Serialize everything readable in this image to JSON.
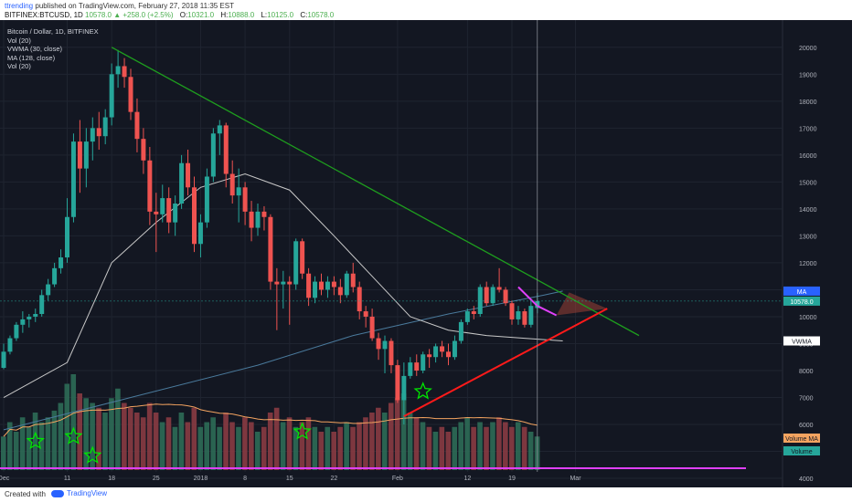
{
  "header": {
    "username": "ttrending",
    "published_text": "published on TradingView.com, February 27, 2018 11:35 EST",
    "symbol": "BITFINEX:BTCUSD, 1D",
    "last": "10578.0",
    "change": "▲ +258.0 (+2.5%)",
    "o_label": "O:",
    "o_value": "10321.0",
    "h_label": "H:",
    "h_value": "10888.0",
    "l_label": "L:",
    "l_value": "10125.0",
    "c_label": "C:",
    "c_value": "10578.0"
  },
  "legend": [
    "Bitcoin / Dollar, 1D, BITFINEX",
    "Vol (20)",
    "VWMA (30, close)",
    "MA (128, close)",
    "Vol (20)"
  ],
  "footer": {
    "created": "Created with",
    "brand": "TradingView"
  },
  "colors": {
    "bg": "#131722",
    "up": "#26a69a",
    "down": "#ef5350",
    "trend": "#1e9e1e",
    "support": "#ff1a1a",
    "magenta": "#e040fb",
    "vwma": "#c8c8c8",
    "ma": "#4a7a9c",
    "volma": "#f4a460",
    "star": "#00e600"
  },
  "chart_data": {
    "type": "candlestick",
    "y_ticks": [
      4000,
      5000,
      6000,
      7000,
      8000,
      9000,
      10000,
      11000,
      12000,
      13000,
      14000,
      15000,
      16000,
      17000,
      18000,
      19000,
      20000
    ],
    "x_ticks": [
      "Dec",
      "11",
      "18",
      "25",
      "2018",
      "8",
      "15",
      "22",
      "Feb",
      "12",
      "19",
      "Mar"
    ],
    "x_tick_days": [
      0,
      10,
      17,
      24,
      31,
      38,
      45,
      52,
      62,
      73,
      80,
      90
    ],
    "price_labels": [
      {
        "text": "MA",
        "value": 10950,
        "color": "#2962ff"
      },
      {
        "text": "10578.0",
        "value": 10578,
        "color": "#26a69a"
      },
      {
        "text": "VWMA",
        "value": 9100,
        "color": "#ffffff"
      }
    ],
    "volume_labels": [
      {
        "text": "Volume MA",
        "color": "#f4a460"
      },
      {
        "text": "Volume",
        "color": "#26a69a"
      }
    ],
    "ylim": [
      3900,
      20400
    ],
    "start_date": "2017-11-26",
    "candles": [
      {
        "o": 8100,
        "h": 9000,
        "l": 8050,
        "c": 8700
      },
      {
        "o": 8700,
        "h": 9300,
        "l": 8600,
        "c": 9200
      },
      {
        "o": 9200,
        "h": 9800,
        "l": 9100,
        "c": 9700
      },
      {
        "o": 9700,
        "h": 10200,
        "l": 9400,
        "c": 9900
      },
      {
        "o": 9900,
        "h": 10100,
        "l": 9600,
        "c": 10000
      },
      {
        "o": 10000,
        "h": 10300,
        "l": 9800,
        "c": 10100
      },
      {
        "o": 10100,
        "h": 11000,
        "l": 10000,
        "c": 10800
      },
      {
        "o": 10800,
        "h": 11400,
        "l": 10600,
        "c": 11200
      },
      {
        "o": 11200,
        "h": 12000,
        "l": 11100,
        "c": 11800
      },
      {
        "o": 11800,
        "h": 12500,
        "l": 11600,
        "c": 12200
      },
      {
        "o": 12200,
        "h": 14400,
        "l": 12000,
        "c": 13700
      },
      {
        "o": 13700,
        "h": 16800,
        "l": 13500,
        "c": 16500
      },
      {
        "o": 16500,
        "h": 17300,
        "l": 14600,
        "c": 15500
      },
      {
        "o": 15500,
        "h": 17000,
        "l": 14800,
        "c": 16500
      },
      {
        "o": 16500,
        "h": 17400,
        "l": 15800,
        "c": 17000
      },
      {
        "o": 17000,
        "h": 17600,
        "l": 16200,
        "c": 16700
      },
      {
        "o": 16700,
        "h": 17700,
        "l": 16400,
        "c": 17400
      },
      {
        "o": 17400,
        "h": 19400,
        "l": 17100,
        "c": 19000
      },
      {
        "o": 19000,
        "h": 19900,
        "l": 18500,
        "c": 19300
      },
      {
        "o": 19300,
        "h": 19600,
        "l": 18500,
        "c": 18900
      },
      {
        "o": 18900,
        "h": 19200,
        "l": 17300,
        "c": 17600
      },
      {
        "o": 17600,
        "h": 18100,
        "l": 16100,
        "c": 16600
      },
      {
        "o": 16600,
        "h": 17000,
        "l": 15300,
        "c": 15800
      },
      {
        "o": 15800,
        "h": 16300,
        "l": 13400,
        "c": 13900
      },
      {
        "o": 13900,
        "h": 14600,
        "l": 12400,
        "c": 13800
      },
      {
        "o": 13800,
        "h": 14900,
        "l": 13500,
        "c": 14400
      },
      {
        "o": 14400,
        "h": 14800,
        "l": 13100,
        "c": 13500
      },
      {
        "o": 13500,
        "h": 14500,
        "l": 13000,
        "c": 14200
      },
      {
        "o": 14200,
        "h": 16000,
        "l": 14000,
        "c": 15700
      },
      {
        "o": 15700,
        "h": 16200,
        "l": 14500,
        "c": 14800
      },
      {
        "o": 14800,
        "h": 15200,
        "l": 12400,
        "c": 12700
      },
      {
        "o": 12700,
        "h": 13800,
        "l": 12200,
        "c": 13500
      },
      {
        "o": 13500,
        "h": 15500,
        "l": 13300,
        "c": 15200
      },
      {
        "o": 15200,
        "h": 17000,
        "l": 15000,
        "c": 16800
      },
      {
        "o": 16800,
        "h": 17300,
        "l": 16000,
        "c": 17100
      },
      {
        "o": 17100,
        "h": 17200,
        "l": 14800,
        "c": 15300
      },
      {
        "o": 15300,
        "h": 15800,
        "l": 14200,
        "c": 14500
      },
      {
        "o": 14500,
        "h": 15500,
        "l": 13500,
        "c": 14800
      },
      {
        "o": 14800,
        "h": 15000,
        "l": 13400,
        "c": 13900
      },
      {
        "o": 13900,
        "h": 14300,
        "l": 12800,
        "c": 13300
      },
      {
        "o": 13300,
        "h": 14200,
        "l": 13000,
        "c": 13900
      },
      {
        "o": 13900,
        "h": 14100,
        "l": 13200,
        "c": 13700
      },
      {
        "o": 13700,
        "h": 13800,
        "l": 11000,
        "c": 11300
      },
      {
        "o": 11300,
        "h": 11800,
        "l": 9500,
        "c": 11200
      },
      {
        "o": 11200,
        "h": 11700,
        "l": 10300,
        "c": 11300
      },
      {
        "o": 11300,
        "h": 11500,
        "l": 9700,
        "c": 11200
      },
      {
        "o": 11200,
        "h": 12900,
        "l": 11000,
        "c": 12800
      },
      {
        "o": 12800,
        "h": 12900,
        "l": 11400,
        "c": 11600
      },
      {
        "o": 11600,
        "h": 11800,
        "l": 10400,
        "c": 10700
      },
      {
        "o": 10700,
        "h": 11500,
        "l": 10500,
        "c": 11300
      },
      {
        "o": 11300,
        "h": 11600,
        "l": 10800,
        "c": 11000
      },
      {
        "o": 11000,
        "h": 11500,
        "l": 10700,
        "c": 11300
      },
      {
        "o": 11300,
        "h": 11500,
        "l": 10800,
        "c": 11100
      },
      {
        "o": 11100,
        "h": 11400,
        "l": 10500,
        "c": 10800
      },
      {
        "o": 10800,
        "h": 11700,
        "l": 10700,
        "c": 11600
      },
      {
        "o": 11600,
        "h": 12000,
        "l": 10900,
        "c": 11100
      },
      {
        "o": 11100,
        "h": 11300,
        "l": 9900,
        "c": 10200
      },
      {
        "o": 10200,
        "h": 10400,
        "l": 9600,
        "c": 10000
      },
      {
        "o": 10000,
        "h": 10300,
        "l": 9100,
        "c": 9200
      },
      {
        "o": 9200,
        "h": 9400,
        "l": 8400,
        "c": 8800
      },
      {
        "o": 8800,
        "h": 9300,
        "l": 7900,
        "c": 9100
      },
      {
        "o": 9100,
        "h": 9200,
        "l": 7900,
        "c": 8200
      },
      {
        "o": 8200,
        "h": 8400,
        "l": 6800,
        "c": 6900
      },
      {
        "o": 6900,
        "h": 8300,
        "l": 6000,
        "c": 7800
      },
      {
        "o": 7800,
        "h": 8500,
        "l": 7700,
        "c": 8300
      },
      {
        "o": 8300,
        "h": 8600,
        "l": 7800,
        "c": 8000
      },
      {
        "o": 8000,
        "h": 8700,
        "l": 7900,
        "c": 8600
      },
      {
        "o": 8600,
        "h": 8800,
        "l": 8100,
        "c": 8500
      },
      {
        "o": 8500,
        "h": 9000,
        "l": 8300,
        "c": 8900
      },
      {
        "o": 8900,
        "h": 9100,
        "l": 8500,
        "c": 8700
      },
      {
        "o": 8700,
        "h": 9000,
        "l": 8200,
        "c": 8500
      },
      {
        "o": 8500,
        "h": 9300,
        "l": 8400,
        "c": 9100
      },
      {
        "o": 9100,
        "h": 9900,
        "l": 9000,
        "c": 9800
      },
      {
        "o": 9800,
        "h": 10300,
        "l": 9700,
        "c": 10200
      },
      {
        "o": 10200,
        "h": 10400,
        "l": 9900,
        "c": 10100
      },
      {
        "o": 10100,
        "h": 11200,
        "l": 10000,
        "c": 11100
      },
      {
        "o": 11100,
        "h": 11300,
        "l": 10400,
        "c": 10500
      },
      {
        "o": 10500,
        "h": 11200,
        "l": 10400,
        "c": 11100
      },
      {
        "o": 11100,
        "h": 11800,
        "l": 10900,
        "c": 11000
      },
      {
        "o": 11000,
        "h": 11100,
        "l": 10400,
        "c": 10500
      },
      {
        "o": 10500,
        "h": 10600,
        "l": 9700,
        "c": 9900
      },
      {
        "o": 9900,
        "h": 10400,
        "l": 9700,
        "c": 10200
      },
      {
        "o": 10200,
        "h": 10300,
        "l": 9600,
        "c": 9700
      },
      {
        "o": 9700,
        "h": 10600,
        "l": 9600,
        "c": 10400
      },
      {
        "o": 10321,
        "h": 10888,
        "l": 10125,
        "c": 10578
      }
    ],
    "volumes": [
      0.35,
      0.5,
      0.4,
      0.55,
      0.45,
      0.6,
      0.5,
      0.55,
      0.62,
      0.7,
      0.9,
      1.0,
      0.8,
      0.75,
      0.7,
      0.65,
      0.6,
      0.75,
      0.85,
      0.7,
      0.65,
      0.6,
      0.55,
      0.7,
      0.6,
      0.5,
      0.55,
      0.45,
      0.6,
      0.5,
      0.65,
      0.45,
      0.5,
      0.55,
      0.45,
      0.6,
      0.5,
      0.45,
      0.55,
      0.5,
      0.4,
      0.45,
      0.6,
      0.65,
      0.5,
      0.55,
      0.45,
      0.5,
      0.55,
      0.45,
      0.4,
      0.45,
      0.4,
      0.45,
      0.5,
      0.45,
      0.5,
      0.55,
      0.6,
      0.65,
      0.6,
      0.7,
      0.75,
      0.8,
      0.6,
      0.55,
      0.5,
      0.45,
      0.4,
      0.45,
      0.4,
      0.45,
      0.5,
      0.55,
      0.45,
      0.5,
      0.45,
      0.5,
      0.55,
      0.5,
      0.45,
      0.5,
      0.45,
      0.4,
      0.35
    ],
    "vwma": [
      [
        0,
        7000
      ],
      [
        10,
        8300
      ],
      [
        17,
        12000
      ],
      [
        24,
        13500
      ],
      [
        31,
        14800
      ],
      [
        38,
        15300
      ],
      [
        45,
        14700
      ],
      [
        52,
        13000
      ],
      [
        58,
        11500
      ],
      [
        64,
        10000
      ],
      [
        70,
        9500
      ],
      [
        76,
        9300
      ],
      [
        82,
        9200
      ],
      [
        88,
        9100
      ]
    ],
    "ma": [
      [
        0,
        5800
      ],
      [
        20,
        7000
      ],
      [
        40,
        8200
      ],
      [
        55,
        9300
      ],
      [
        70,
        10100
      ],
      [
        85,
        10800
      ],
      [
        88,
        10950
      ]
    ],
    "trendline": [
      [
        17,
        20000
      ],
      [
        100,
        9300
      ]
    ],
    "support": [
      [
        63,
        6300
      ],
      [
        88,
        10300
      ]
    ],
    "magenta": [
      [
        81,
        11100
      ],
      [
        84,
        10400
      ],
      [
        87,
        10050
      ]
    ],
    "stars": [
      {
        "day": 5,
        "y": 0.3
      },
      {
        "day": 11,
        "y": 0.35
      },
      {
        "day": 14,
        "y": 0.15
      },
      {
        "day": 47,
        "y": 0.4
      },
      {
        "day": 66,
        "y": 0.82
      }
    ]
  }
}
